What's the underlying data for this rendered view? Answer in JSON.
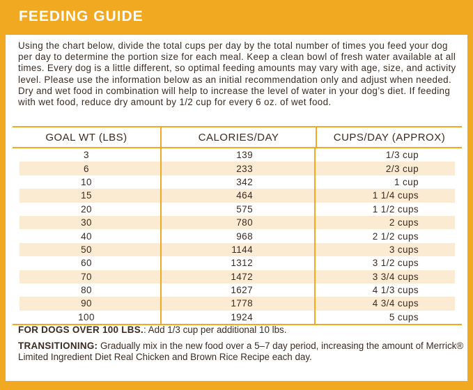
{
  "title": "FEEDING GUIDE",
  "intro": "Using the chart below, divide the total cups per day by the total number of times you feed your dog per day to determine the portion size for each meal. Keep a clean bowl of fresh water available at all times. Every dog is a little different, so optimal feeding amounts may vary with age, size, and activity level. Please use the information below as an initial recommendation only and adjust when needed. Dry and wet food in combination will help to increase the level of water in your dog’s diet. If feeding with wet food, reduce dry amount by 1/2 cup for every 6 oz. of wet food.",
  "table": {
    "headers": [
      "GOAL WT (LBS)",
      "CALORIES/DAY",
      "CUPS/DAY (APPROX)"
    ],
    "rows": [
      [
        "3",
        "139",
        "1/3 cup"
      ],
      [
        "6",
        "233",
        "2/3 cup"
      ],
      [
        "10",
        "342",
        "1 cup"
      ],
      [
        "15",
        "464",
        "1 1/4 cups"
      ],
      [
        "20",
        "575",
        "1 1/2 cups"
      ],
      [
        "30",
        "780",
        "2 cups"
      ],
      [
        "40",
        "968",
        "2 1/2 cups"
      ],
      [
        "50",
        "1144",
        "3 cups"
      ],
      [
        "60",
        "1312",
        "3 1/2 cups"
      ],
      [
        "70",
        "1472",
        "3 3/4 cups"
      ],
      [
        "80",
        "1627",
        "4 1/3 cups"
      ],
      [
        "90",
        "1778",
        "4 3/4 cups"
      ],
      [
        "100",
        "1924",
        "5 cups"
      ]
    ]
  },
  "notes": {
    "over100_label": "FOR DOGS OVER 100 LBS.",
    "over100_text": ": Add 1/3 cup per additional 10 lbs.",
    "transition_label": "TRANSITIONING:",
    "transition_text": " Gradually mix in the new food over a 5–7 day period, increasing the amount of Merrick® Limited Ingredient Diet Real Chicken and Brown Rice Recipe each day."
  },
  "colors": {
    "border": "#f2a922",
    "stripe": "#fcebd3",
    "text": "#3b2b22"
  }
}
